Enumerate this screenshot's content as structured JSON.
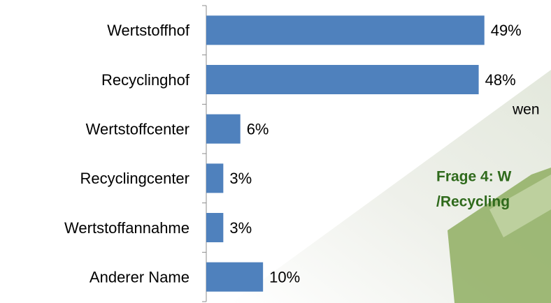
{
  "chart_data": {
    "type": "hbar",
    "categories": [
      "Wertstoffhof",
      "Recyclinghof",
      "Wertstoffcenter",
      "Recyclingcenter",
      "Wertstoffannahme",
      "Anderer Name"
    ],
    "values": [
      49,
      48,
      6,
      3,
      3,
      10
    ],
    "value_labels": [
      "49%",
      "48%",
      "6%",
      "3%",
      "3%",
      "10%"
    ],
    "color": "#4f81bd",
    "xlim": [
      0,
      60
    ],
    "annotations": [
      "wen",
      "Frage 4: W",
      "/Recycling"
    ]
  }
}
